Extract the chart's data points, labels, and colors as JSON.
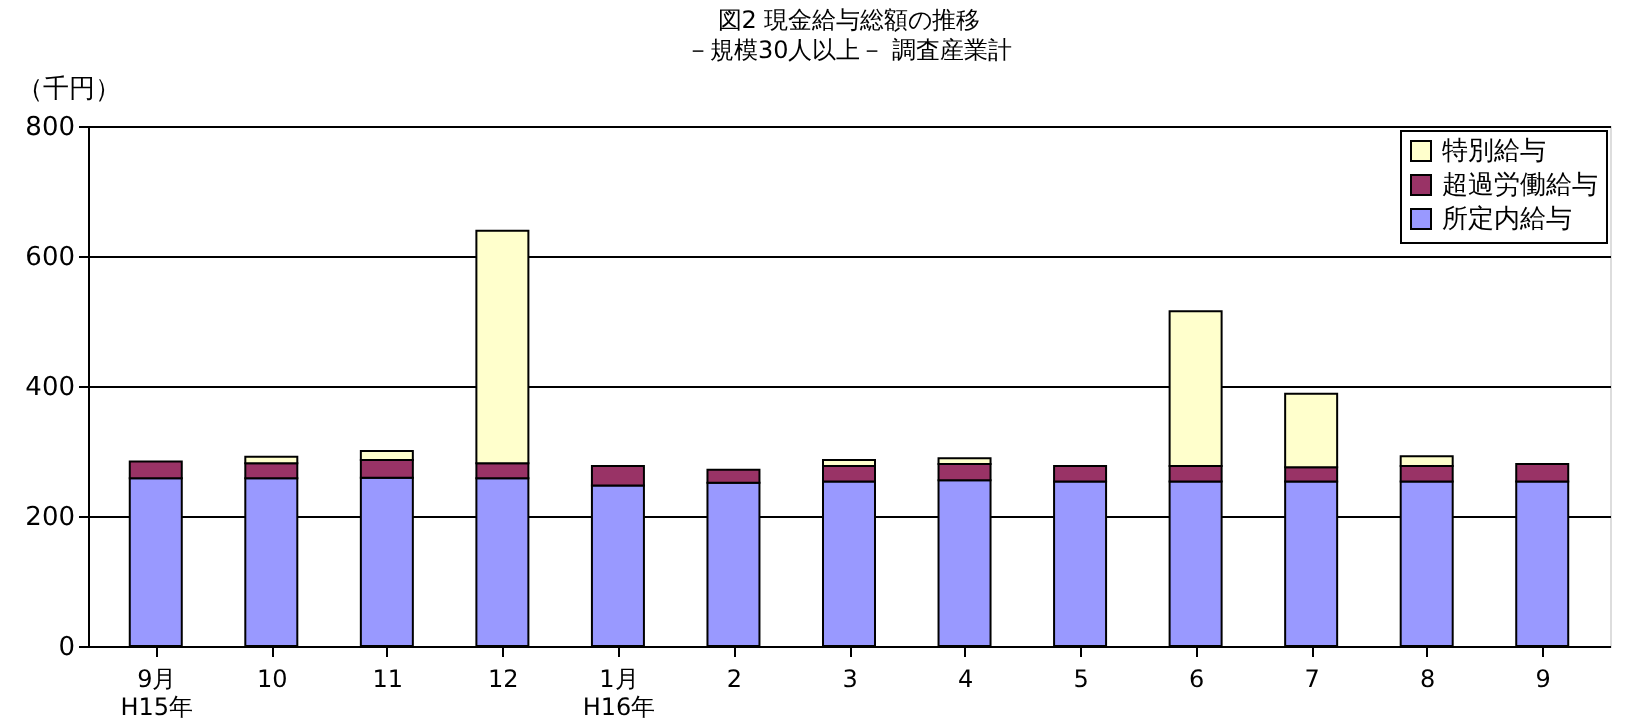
{
  "chart_data": {
    "type": "bar",
    "title": "図2  現金給与総額の推移",
    "subtitle": "－規模30人以上－  調査産業計",
    "ylabel": "（千円）",
    "categories": [
      "9月\nH15年",
      "10",
      "11",
      "12",
      "1月\nH16年",
      "2",
      "3",
      "4",
      "5",
      "6",
      "7",
      "8",
      "9"
    ],
    "stacked": true,
    "series": [
      {
        "name": "所定内給与",
        "color": "#9999ff",
        "values": [
          258,
          258,
          259,
          258,
          247,
          251,
          253,
          255,
          253,
          253,
          253,
          253,
          253
        ]
      },
      {
        "name": "超過労働給与",
        "color": "#993366",
        "values": [
          26,
          23,
          27,
          23,
          30,
          20,
          24,
          25,
          24,
          24,
          22,
          24,
          27
        ]
      },
      {
        "name": "特別給与",
        "color": "#ffffcc",
        "values": [
          null,
          10,
          14,
          358,
          null,
          null,
          9,
          9,
          null,
          238,
          113,
          15,
          null
        ]
      }
    ],
    "ylim": [
      0,
      800
    ],
    "yticks": [
      0,
      200,
      400,
      600,
      800
    ],
    "grid": "y",
    "legend": "top right"
  }
}
